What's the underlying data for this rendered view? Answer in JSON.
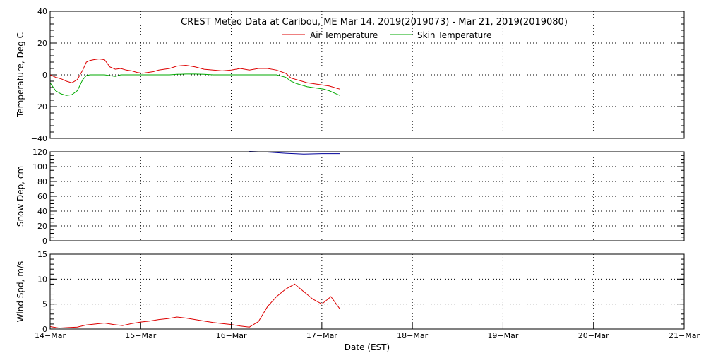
{
  "chart_data": [
    {
      "type": "line",
      "title": "CREST Meteo Data at Caribou, ME   Mar 14, 2019(2019073) - Mar 21, 2019(2019080)",
      "ylabel": "Temperature, Deg C",
      "xlim": [
        0,
        7
      ],
      "ylim": [
        -40,
        40
      ],
      "y_ticks": [
        "40",
        "20",
        "0",
        "−20",
        "−40"
      ],
      "grid": true,
      "legend_position": "top",
      "series": [
        {
          "name": "Air Temperature",
          "color": "#dd0000",
          "x": [
            0.0,
            0.06,
            0.12,
            0.18,
            0.24,
            0.3,
            0.36,
            0.4,
            0.44,
            0.48,
            0.54,
            0.6,
            0.66,
            0.72,
            0.78,
            0.84,
            0.9,
            0.96,
            1.02,
            1.08,
            1.14,
            1.2,
            1.26,
            1.32,
            1.4,
            1.5,
            1.6,
            1.7,
            1.8,
            1.9,
            2.0,
            2.1,
            2.2,
            2.3,
            2.4,
            2.5,
            2.6,
            2.66,
            2.72,
            2.78,
            2.84,
            2.9,
            2.96,
            3.02,
            3.08,
            3.14,
            3.2
          ],
          "values": [
            0,
            -1.5,
            -2.5,
            -4,
            -5,
            -3,
            3,
            8,
            9,
            9.5,
            10,
            9.5,
            5,
            3.5,
            4,
            3,
            2.5,
            1.5,
            1,
            1.5,
            2,
            3,
            3.5,
            4,
            5.5,
            6,
            5,
            3.5,
            3,
            2.5,
            3,
            4,
            3,
            4,
            4,
            3,
            1,
            -2,
            -3,
            -4,
            -5,
            -5.5,
            -6,
            -6.5,
            -7,
            -8,
            -9
          ]
        },
        {
          "name": "Skin Temperature",
          "color": "#00aa00",
          "x": [
            0.0,
            0.06,
            0.12,
            0.18,
            0.24,
            0.3,
            0.36,
            0.4,
            0.44,
            0.48,
            0.54,
            0.6,
            0.66,
            0.72,
            0.78,
            0.84,
            0.9,
            0.96,
            1.02,
            1.08,
            1.14,
            1.2,
            1.26,
            1.32,
            1.4,
            1.5,
            1.6,
            1.7,
            1.8,
            1.9,
            2.0,
            2.1,
            2.2,
            2.3,
            2.4,
            2.5,
            2.6,
            2.66,
            2.72,
            2.78,
            2.84,
            2.9,
            2.96,
            3.02,
            3.08,
            3.14,
            3.2
          ],
          "values": [
            -5,
            -10,
            -12,
            -13,
            -12.5,
            -10,
            -3,
            -0.5,
            0,
            0,
            0,
            0,
            -0.5,
            -1,
            0,
            0,
            0,
            0,
            0,
            0,
            0,
            0,
            0,
            0,
            0.3,
            0.5,
            0.5,
            0.3,
            0,
            0,
            0,
            0,
            0,
            0,
            0,
            0,
            -1.5,
            -4,
            -5.5,
            -6.5,
            -7.5,
            -8,
            -8.5,
            -9,
            -10,
            -11.5,
            -13
          ]
        }
      ]
    },
    {
      "type": "line",
      "ylabel": "Snow Dep, cm",
      "xlim": [
        0,
        7
      ],
      "ylim": [
        0,
        120
      ],
      "y_ticks": [
        "120",
        "100",
        "80",
        "60",
        "40",
        "20",
        "0"
      ],
      "grid": true,
      "series": [
        {
          "color": "#000099",
          "x": [
            2.2,
            2.4,
            2.6,
            2.8,
            3.0,
            3.2
          ],
          "values": [
            120.5,
            119.5,
            118,
            117,
            117.5,
            117.5
          ]
        }
      ]
    },
    {
      "type": "line",
      "ylabel": "Wind Spd, m/s",
      "xlabel": "Date (EST)",
      "xlim": [
        0,
        7
      ],
      "ylim": [
        0,
        15
      ],
      "y_ticks": [
        "15",
        "10",
        "5",
        "0"
      ],
      "x_ticks": [
        "14−Mar",
        "15−Mar",
        "16−Mar",
        "17−Mar",
        "18−Mar",
        "19−Mar",
        "20−Mar",
        "21−Mar"
      ],
      "grid": true,
      "series": [
        {
          "color": "#dd0000",
          "x": [
            0.0,
            0.1,
            0.2,
            0.3,
            0.4,
            0.5,
            0.6,
            0.7,
            0.8,
            0.9,
            1.0,
            1.1,
            1.2,
            1.3,
            1.4,
            1.5,
            1.6,
            1.7,
            1.8,
            1.9,
            2.0,
            2.1,
            2.2,
            2.3,
            2.4,
            2.5,
            2.6,
            2.7,
            2.8,
            2.9,
            3.0,
            3.1,
            3.2
          ],
          "values": [
            0.5,
            0.2,
            0.3,
            0.4,
            0.8,
            1.0,
            1.2,
            0.9,
            0.7,
            1.1,
            1.4,
            1.6,
            1.9,
            2.1,
            2.4,
            2.2,
            1.9,
            1.6,
            1.3,
            1.1,
            0.9,
            0.6,
            0.4,
            1.5,
            4.5,
            6.5,
            8.0,
            9.0,
            7.5,
            6.0,
            5.0,
            6.5,
            4.0
          ]
        }
      ]
    }
  ]
}
